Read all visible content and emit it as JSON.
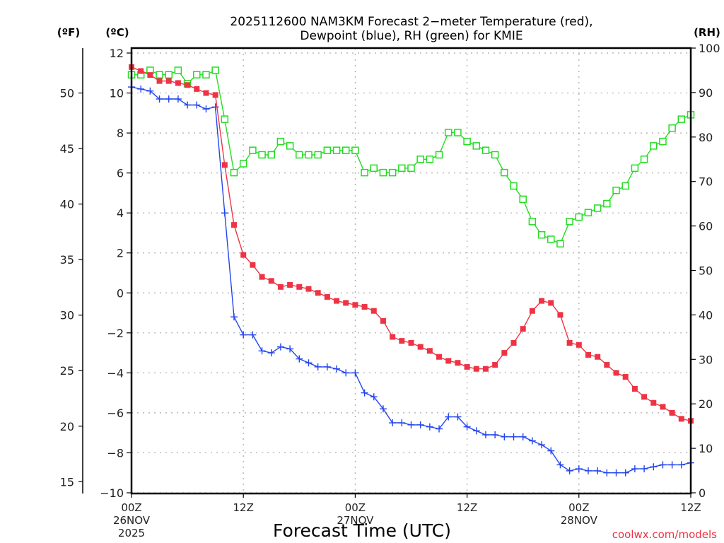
{
  "chart_data": {
    "type": "line",
    "title_line1": "2025112600 NAM3KM Forecast 2−meter Temperature (red),",
    "title_line2": "Dewpoint (blue), RH (green) for KMIE",
    "xlabel": "Forecast Time (UTC)",
    "credit": "coolwx.com/models",
    "units": {
      "fahrenheit": "(ºF)",
      "celsius": "(ºC)",
      "rh": "(RH)"
    },
    "x_hours": [
      0,
      1,
      2,
      3,
      4,
      5,
      6,
      7,
      8,
      9,
      10,
      11,
      12,
      13,
      14,
      15,
      16,
      17,
      18,
      19,
      20,
      21,
      22,
      23,
      24,
      25,
      26,
      27,
      28,
      29,
      30,
      31,
      32,
      33,
      34,
      35,
      36,
      37,
      38,
      39,
      40,
      41,
      42,
      43,
      44,
      45,
      46,
      47,
      48,
      49,
      50,
      51,
      52,
      53,
      54,
      55,
      56,
      57,
      58,
      59,
      60
    ],
    "xlim": [
      0,
      60
    ],
    "x_ticks": [
      {
        "hour": 0,
        "label": "00Z",
        "date": "26NOV",
        "year": "2025"
      },
      {
        "hour": 12,
        "label": "12Z",
        "date": "",
        "year": ""
      },
      {
        "hour": 24,
        "label": "00Z",
        "date": "27NOV",
        "year": ""
      },
      {
        "hour": 36,
        "label": "12Z",
        "date": "",
        "year": ""
      },
      {
        "hour": 48,
        "label": "00Z",
        "date": "28NOV",
        "year": ""
      },
      {
        "hour": 60,
        "label": "12Z",
        "date": "",
        "year": ""
      }
    ],
    "y_left_celsius": {
      "lim": [
        -10,
        12
      ],
      "ticks": [
        "12",
        "10",
        "8",
        "6",
        "4",
        "2",
        "0",
        "−2",
        "−4",
        "−6",
        "−8",
        "−10"
      ]
    },
    "y_fahrenheit": {
      "ticks": [
        "50",
        "45",
        "40",
        "35",
        "30",
        "25",
        "20",
        "15"
      ]
    },
    "y_right_rh": {
      "lim": [
        0,
        100
      ],
      "ticks": [
        "100",
        "90",
        "80",
        "70",
        "60",
        "50",
        "40",
        "30",
        "20",
        "10",
        "0"
      ]
    },
    "grid": true,
    "series": [
      {
        "name": "Temperature",
        "color": "#ee3344",
        "marker": "filled-square",
        "axis": "celsius",
        "values": [
          11.3,
          11.1,
          10.9,
          10.6,
          10.6,
          10.5,
          10.4,
          10.2,
          10.0,
          9.9,
          6.4,
          3.4,
          1.9,
          1.4,
          0.8,
          0.6,
          0.3,
          0.4,
          0.3,
          0.2,
          0.0,
          -0.2,
          -0.4,
          -0.5,
          -0.6,
          -0.7,
          -0.9,
          -1.4,
          -2.2,
          -2.4,
          -2.5,
          -2.7,
          -2.9,
          -3.2,
          -3.4,
          -3.5,
          -3.7,
          -3.8,
          -3.8,
          -3.6,
          -3.0,
          -2.5,
          -1.8,
          -0.9,
          -0.4,
          -0.5,
          -1.1,
          -2.5,
          -2.6,
          -3.1,
          -3.2,
          -3.6,
          -4.0,
          -4.2,
          -4.8,
          -5.2,
          -5.5,
          -5.7,
          -6.0,
          -6.3,
          -6.4
        ]
      },
      {
        "name": "Dewpoint",
        "color": "#2244ee",
        "marker": "plus",
        "axis": "celsius",
        "values": [
          10.3,
          10.2,
          10.1,
          9.7,
          9.7,
          9.7,
          9.4,
          9.4,
          9.2,
          9.3,
          4.0,
          -1.2,
          -2.1,
          -2.1,
          -2.9,
          -3.0,
          -2.7,
          -2.8,
          -3.3,
          -3.5,
          -3.7,
          -3.7,
          -3.8,
          -4.0,
          -4.0,
          -5.0,
          -5.2,
          -5.8,
          -6.5,
          -6.5,
          -6.6,
          -6.6,
          -6.7,
          -6.8,
          -6.2,
          -6.2,
          -6.7,
          -6.9,
          -7.1,
          -7.1,
          -7.2,
          -7.2,
          -7.2,
          -7.4,
          -7.6,
          -7.9,
          -8.6,
          -8.9,
          -8.8,
          -8.9,
          -8.9,
          -9.0,
          -9.0,
          -9.0,
          -8.8,
          -8.8,
          -8.7,
          -8.6,
          -8.6,
          -8.6,
          -8.5
        ]
      },
      {
        "name": "RH",
        "color": "#22dd22",
        "marker": "open-square",
        "axis": "rh",
        "values": [
          94,
          94,
          95,
          94,
          94,
          95,
          92,
          94,
          94,
          95,
          84,
          72,
          74,
          77,
          76,
          76,
          79,
          78,
          76,
          76,
          76,
          77,
          77,
          77,
          77,
          72,
          73,
          72,
          72,
          73,
          73,
          75,
          75,
          76,
          81,
          81,
          79,
          78,
          77,
          76,
          72,
          69,
          66,
          61,
          58,
          57,
          56,
          61,
          62,
          63,
          64,
          65,
          68,
          69,
          73,
          75,
          78,
          79,
          82,
          84,
          85
        ]
      }
    ]
  }
}
